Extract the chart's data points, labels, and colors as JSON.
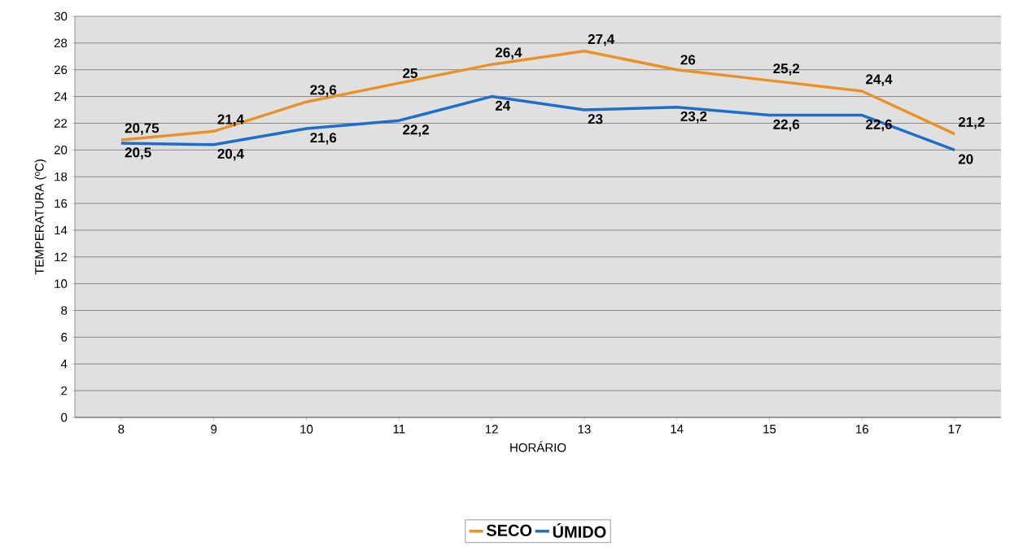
{
  "chart_data": {
    "type": "line",
    "xlabel": "HORÁRIO",
    "ylabel": "TEMPERATURA (ºC)",
    "categories": [
      "8",
      "9",
      "10",
      "11",
      "12",
      "13",
      "14",
      "15",
      "16",
      "17"
    ],
    "series": [
      {
        "name": "SECO",
        "color": "#e8922a",
        "values": [
          20.75,
          21.4,
          23.6,
          25,
          26.4,
          27.4,
          26,
          25.2,
          24.4,
          21.2
        ],
        "value_labels": [
          "20,75",
          "21,4",
          "23,6",
          "25",
          "26,4",
          "27,4",
          "26",
          "25,2",
          "24,4",
          "21,2"
        ]
      },
      {
        "name": "ÚMIDO",
        "color": "#1f6fc8",
        "values": [
          20.5,
          20.4,
          21.6,
          22.2,
          24,
          23,
          23.2,
          22.6,
          22.6,
          20
        ],
        "value_labels": [
          "20,5",
          "20,4",
          "21,6",
          "22,2",
          "24",
          "23",
          "23,2",
          "22,6",
          "22,6",
          "20"
        ]
      }
    ],
    "ylim": [
      0,
      30
    ],
    "yticks": [
      0,
      2,
      4,
      6,
      8,
      10,
      12,
      14,
      16,
      18,
      20,
      22,
      24,
      26,
      28,
      30
    ],
    "grid": "y",
    "legend": "bottom",
    "marker": "none",
    "line_style": "solid"
  }
}
